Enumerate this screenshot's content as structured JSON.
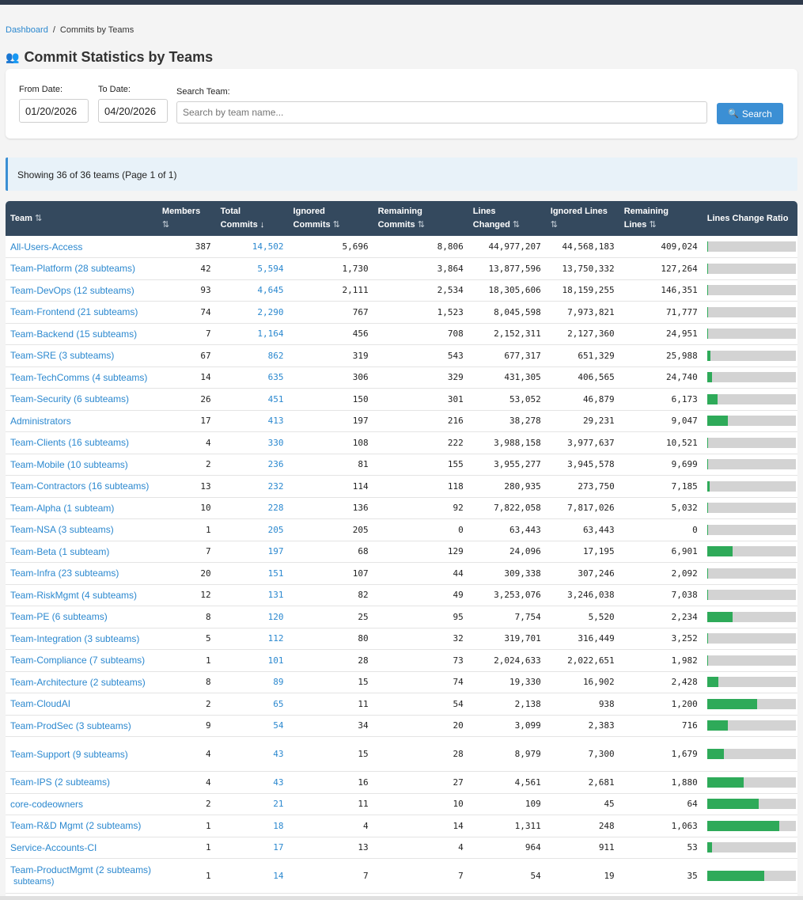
{
  "breadcrumb": {
    "home": "Dashboard",
    "separator": "/",
    "current": "Commits by Teams"
  },
  "page": {
    "icon": "👥",
    "title": "Commit Statistics by Teams"
  },
  "filters": {
    "from_label": "From Date:",
    "from_value": "01/20/2026",
    "to_label": "To Date:",
    "to_value": "04/20/2026",
    "search_label": "Search Team:",
    "search_placeholder": "Search by team name...",
    "search_button": "Search",
    "search_icon": "🔍"
  },
  "info": "Showing 36 of 36 teams (Page 1 of 1)",
  "colors": {
    "accent": "#3b8fd4",
    "header_bg": "#34495e",
    "bar_fill": "#2eaa59",
    "bar_bg": "#d3d3d3",
    "link": "#2b88cf"
  },
  "columns": [
    {
      "line1": "Team",
      "line2": "",
      "sort": "⇅"
    },
    {
      "line1": "Members",
      "line2": "",
      "sort": "⇅"
    },
    {
      "line1": "Total",
      "line2": "Commits",
      "sort": "↓"
    },
    {
      "line1": "Ignored",
      "line2": "Commits",
      "sort": "⇅"
    },
    {
      "line1": "Remaining",
      "line2": "Commits",
      "sort": "⇅"
    },
    {
      "line1": "Lines",
      "line2": "Changed",
      "sort": "⇅"
    },
    {
      "line1": "Ignored Lines",
      "line2": "",
      "sort": "⇅"
    },
    {
      "line1": "Remaining",
      "line2": "Lines",
      "sort": "⇅"
    },
    {
      "line1": "Lines Change Ratio",
      "line2": "",
      "sort": ""
    }
  ],
  "rows": [
    {
      "team": "All-Users-Access",
      "members": "387",
      "total": "14,502",
      "ignored": "5,696",
      "remaining": "8,806",
      "lines": "44,977,207",
      "ignored_lines": "44,568,183",
      "remaining_lines": "409,024",
      "ratio": 0.009
    },
    {
      "team": "Team-Platform (28 subteams)",
      "members": "42",
      "total": "5,594",
      "ignored": "1,730",
      "remaining": "3,864",
      "lines": "13,877,596",
      "ignored_lines": "13,750,332",
      "remaining_lines": "127,264",
      "ratio": 0.009
    },
    {
      "team": "Team-DevOps (12 subteams)",
      "members": "93",
      "total": "4,645",
      "ignored": "2,111",
      "remaining": "2,534",
      "lines": "18,305,606",
      "ignored_lines": "18,159,255",
      "remaining_lines": "146,351",
      "ratio": 0.008
    },
    {
      "team": "Team-Frontend (21 subteams)",
      "members": "74",
      "total": "2,290",
      "ignored": "767",
      "remaining": "1,523",
      "lines": "8,045,598",
      "ignored_lines": "7,973,821",
      "remaining_lines": "71,777",
      "ratio": 0.009
    },
    {
      "team": "Team-Backend (15 subteams)",
      "members": "7",
      "total": "1,164",
      "ignored": "456",
      "remaining": "708",
      "lines": "2,152,311",
      "ignored_lines": "2,127,360",
      "remaining_lines": "24,951",
      "ratio": 0.012
    },
    {
      "team": "Team-SRE (3 subteams)",
      "members": "67",
      "total": "862",
      "ignored": "319",
      "remaining": "543",
      "lines": "677,317",
      "ignored_lines": "651,329",
      "remaining_lines": "25,988",
      "ratio": 0.038
    },
    {
      "team": "Team-TechComms (4 subteams)",
      "members": "14",
      "total": "635",
      "ignored": "306",
      "remaining": "329",
      "lines": "431,305",
      "ignored_lines": "406,565",
      "remaining_lines": "24,740",
      "ratio": 0.057
    },
    {
      "team": "Team-Security (6 subteams)",
      "members": "26",
      "total": "451",
      "ignored": "150",
      "remaining": "301",
      "lines": "53,052",
      "ignored_lines": "46,879",
      "remaining_lines": "6,173",
      "ratio": 0.116
    },
    {
      "team": "Administrators",
      "members": "17",
      "total": "413",
      "ignored": "197",
      "remaining": "216",
      "lines": "38,278",
      "ignored_lines": "29,231",
      "remaining_lines": "9,047",
      "ratio": 0.236
    },
    {
      "team": "Team-Clients (16 subteams)",
      "members": "4",
      "total": "330",
      "ignored": "108",
      "remaining": "222",
      "lines": "3,988,158",
      "ignored_lines": "3,977,637",
      "remaining_lines": "10,521",
      "ratio": 0.003
    },
    {
      "team": "Team-Mobile (10 subteams)",
      "members": "2",
      "total": "236",
      "ignored": "81",
      "remaining": "155",
      "lines": "3,955,277",
      "ignored_lines": "3,945,578",
      "remaining_lines": "9,699",
      "ratio": 0.002
    },
    {
      "team": "Team-Contractors (16 subteams)",
      "members": "13",
      "total": "232",
      "ignored": "114",
      "remaining": "118",
      "lines": "280,935",
      "ignored_lines": "273,750",
      "remaining_lines": "7,185",
      "ratio": 0.026
    },
    {
      "team": "Team-Alpha (1 subteam)",
      "members": "10",
      "total": "228",
      "ignored": "136",
      "remaining": "92",
      "lines": "7,822,058",
      "ignored_lines": "7,817,026",
      "remaining_lines": "5,032",
      "ratio": 0.001
    },
    {
      "team": "Team-NSA (3 subteams)",
      "members": "1",
      "total": "205",
      "ignored": "205",
      "remaining": "0",
      "lines": "63,443",
      "ignored_lines": "63,443",
      "remaining_lines": "0",
      "ratio": 0
    },
    {
      "team": "Team-Beta (1 subteam)",
      "members": "7",
      "total": "197",
      "ignored": "68",
      "remaining": "129",
      "lines": "24,096",
      "ignored_lines": "17,195",
      "remaining_lines": "6,901",
      "ratio": 0.286
    },
    {
      "team": "Team-Infra (23 subteams)",
      "members": "20",
      "total": "151",
      "ignored": "107",
      "remaining": "44",
      "lines": "309,338",
      "ignored_lines": "307,246",
      "remaining_lines": "2,092",
      "ratio": 0.007
    },
    {
      "team": "Team-RiskMgmt (4 subteams)",
      "members": "12",
      "total": "131",
      "ignored": "82",
      "remaining": "49",
      "lines": "3,253,076",
      "ignored_lines": "3,246,038",
      "remaining_lines": "7,038",
      "ratio": 0.002
    },
    {
      "team": "Team-PE (6 subteams)",
      "members": "8",
      "total": "120",
      "ignored": "25",
      "remaining": "95",
      "lines": "7,754",
      "ignored_lines": "5,520",
      "remaining_lines": "2,234",
      "ratio": 0.288
    },
    {
      "team": "Team-Integration (3 subteams)",
      "members": "5",
      "total": "112",
      "ignored": "80",
      "remaining": "32",
      "lines": "319,701",
      "ignored_lines": "316,449",
      "remaining_lines": "3,252",
      "ratio": 0.01
    },
    {
      "team": "Team-Compliance (7 subteams)",
      "members": "1",
      "total": "101",
      "ignored": "28",
      "remaining": "73",
      "lines": "2,024,633",
      "ignored_lines": "2,022,651",
      "remaining_lines": "1,982",
      "ratio": 0.001
    },
    {
      "team": "Team-Architecture (2 subteams)",
      "members": "8",
      "total": "89",
      "ignored": "15",
      "remaining": "74",
      "lines": "19,330",
      "ignored_lines": "16,902",
      "remaining_lines": "2,428",
      "ratio": 0.126
    },
    {
      "team": "Team-CloudAI",
      "members": "2",
      "total": "65",
      "ignored": "11",
      "remaining": "54",
      "lines": "2,138",
      "ignored_lines": "938",
      "remaining_lines": "1,200",
      "ratio": 0.561
    },
    {
      "team": "Team-ProdSec (3 subteams)",
      "members": "9",
      "total": "54",
      "ignored": "34",
      "remaining": "20",
      "lines": "3,099",
      "ignored_lines": "2,383",
      "remaining_lines": "716",
      "ratio": 0.231
    },
    {
      "team": "Team-Support (9 subteams)",
      "members": "4",
      "total": "43",
      "ignored": "15",
      "remaining": "28",
      "lines": "8,979",
      "ignored_lines": "7,300",
      "remaining_lines": "1,679",
      "ratio": 0.187,
      "tall": true
    },
    {
      "team": "Team-IPS (2 subteams)",
      "members": "4",
      "total": "43",
      "ignored": "16",
      "remaining": "27",
      "lines": "4,561",
      "ignored_lines": "2,681",
      "remaining_lines": "1,880",
      "ratio": 0.412
    },
    {
      "team": "core-codeowners",
      "members": "2",
      "total": "21",
      "ignored": "11",
      "remaining": "10",
      "lines": "109",
      "ignored_lines": "45",
      "remaining_lines": "64",
      "ratio": 0.587
    },
    {
      "team": "Team-R&D Mgmt (2 subteams)",
      "members": "1",
      "total": "18",
      "ignored": "4",
      "remaining": "14",
      "lines": "1,311",
      "ignored_lines": "248",
      "remaining_lines": "1,063",
      "ratio": 0.811
    },
    {
      "team": "Service-Accounts-CI",
      "members": "1",
      "total": "17",
      "ignored": "13",
      "remaining": "4",
      "lines": "964",
      "ignored_lines": "911",
      "remaining_lines": "53",
      "ratio": 0.055
    },
    {
      "team": "Team-ProductMgmt (2 subteams)",
      "team_extra": "subteams)",
      "members": "1",
      "total": "14",
      "ignored": "7",
      "remaining": "7",
      "lines": "54",
      "ignored_lines": "19",
      "remaining_lines": "35",
      "ratio": 0.648,
      "tall": true,
      "wrap": true
    }
  ]
}
